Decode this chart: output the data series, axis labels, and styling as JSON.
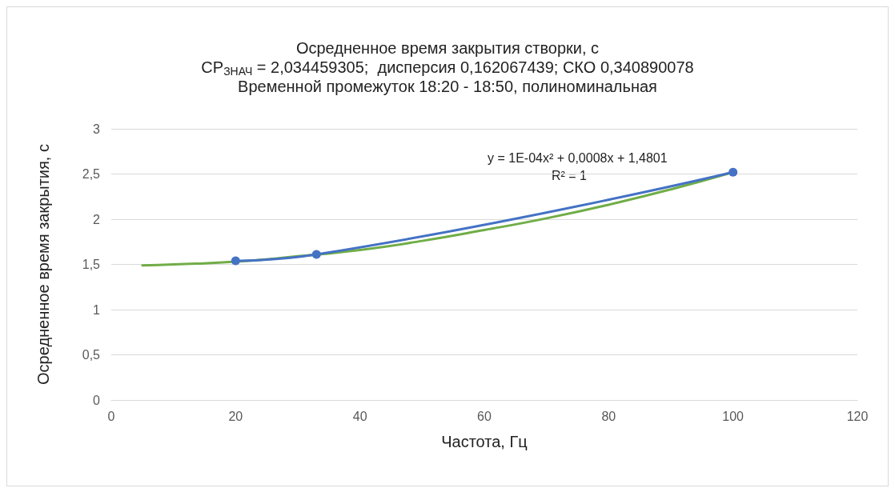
{
  "chart_data": {
    "type": "line",
    "title": "Осредненное время закрытия створки, с",
    "subtitle": "CP$_{ЗНАЧ}$ = 2,034459305;  дисперсия 0,162067439; СКО 0,340890078\nВременной промежуток 18:20 - 18:50, полиноминальная",
    "xlabel": "Частота, Гц",
    "ylabel": "Осредненное время закрытия, с",
    "x": [
      20,
      33,
      100
    ],
    "series": [
      {
        "color": "#4472c4",
        "values": [
          1.54,
          1.61,
          2.52
        ]
      },
      {
        "color": "#70ad47",
        "marker": "none",
        "x": [
          5,
          10,
          20,
          30,
          40,
          50,
          60,
          70,
          80,
          90,
          100
        ],
        "values": [
          1.49,
          1.5,
          1.53,
          1.59,
          1.66,
          1.76,
          1.88,
          2.01,
          2.16,
          2.33,
          2.52
        ]
      }
    ],
    "annotations": [
      "y = 1E-04x² + 0,0008x + 1,4801",
      "R² = 1"
    ],
    "xlim": [
      0,
      120
    ],
    "xticks": [
      0,
      20,
      40,
      60,
      80,
      100,
      120
    ],
    "ylim": [
      0,
      3
    ],
    "yticks": [
      0,
      {
        "value": 0.5,
        "label": "0,5"
      },
      1,
      {
        "value": 1.5,
        "label": "1,5"
      },
      2,
      {
        "value": 2.5,
        "label": "2,5"
      },
      3
    ],
    "grid": "y",
    "legend": false,
    "marker": "circle",
    "line_style": "solid"
  }
}
